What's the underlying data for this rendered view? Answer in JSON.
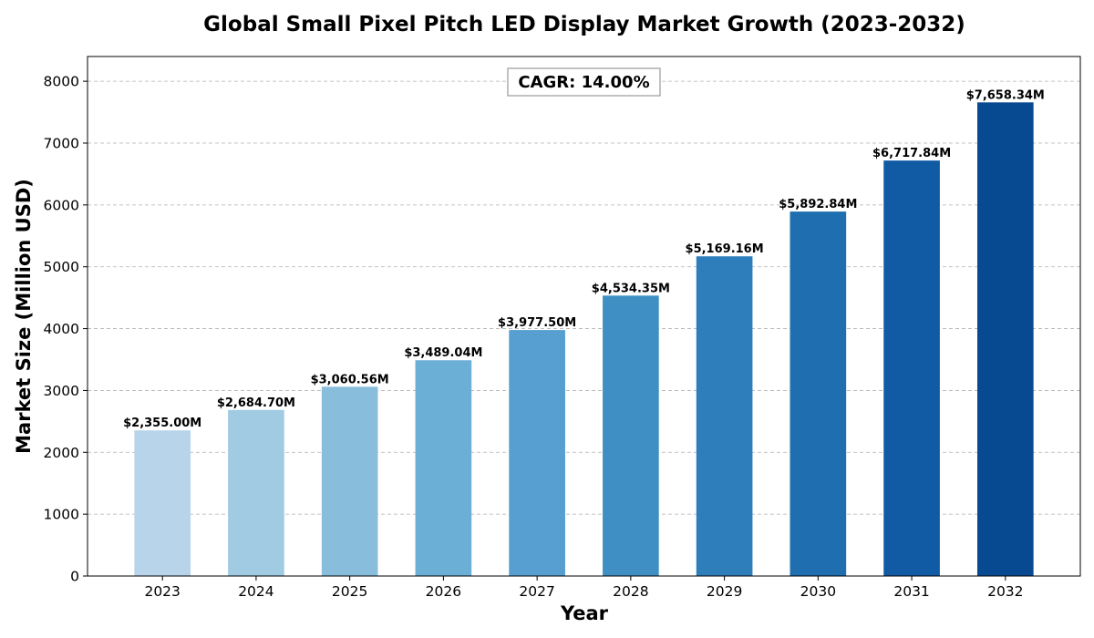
{
  "chart_data": {
    "type": "bar",
    "title": "Global Small Pixel Pitch LED Display Market Growth (2023-2032)",
    "xlabel": "Year",
    "ylabel": "Market Size (Million USD)",
    "categories": [
      "2023",
      "2024",
      "2025",
      "2026",
      "2027",
      "2028",
      "2029",
      "2030",
      "2031",
      "2032"
    ],
    "values": [
      2355.0,
      2684.7,
      3060.56,
      3489.04,
      3977.5,
      4534.35,
      5169.16,
      5892.84,
      6717.84,
      7658.34
    ],
    "data_labels": [
      "$2,355.00M",
      "$2,684.70M",
      "$3,060.56M",
      "$3,489.04M",
      "$3,977.50M",
      "$4,534.35M",
      "$5,169.16M",
      "$5,892.84M",
      "$6,717.84M",
      "$7,658.34M"
    ],
    "bar_colors": [
      "#b7d4ea",
      "#a0cbe2",
      "#88bedc",
      "#6baed6",
      "#569fd0",
      "#3f8fc5",
      "#2e7ebc",
      "#1f6eb0",
      "#105ba4",
      "#084a91"
    ],
    "ylim": [
      0,
      8400
    ],
    "yticks": [
      0,
      1000,
      2000,
      3000,
      4000,
      5000,
      6000,
      7000,
      8000
    ],
    "ytick_labels": [
      "0",
      "1000",
      "2000",
      "3000",
      "4000",
      "5000",
      "6000",
      "7000",
      "8000"
    ],
    "grid": "y-axis dashed",
    "annotation": "CAGR: 14.00%"
  }
}
